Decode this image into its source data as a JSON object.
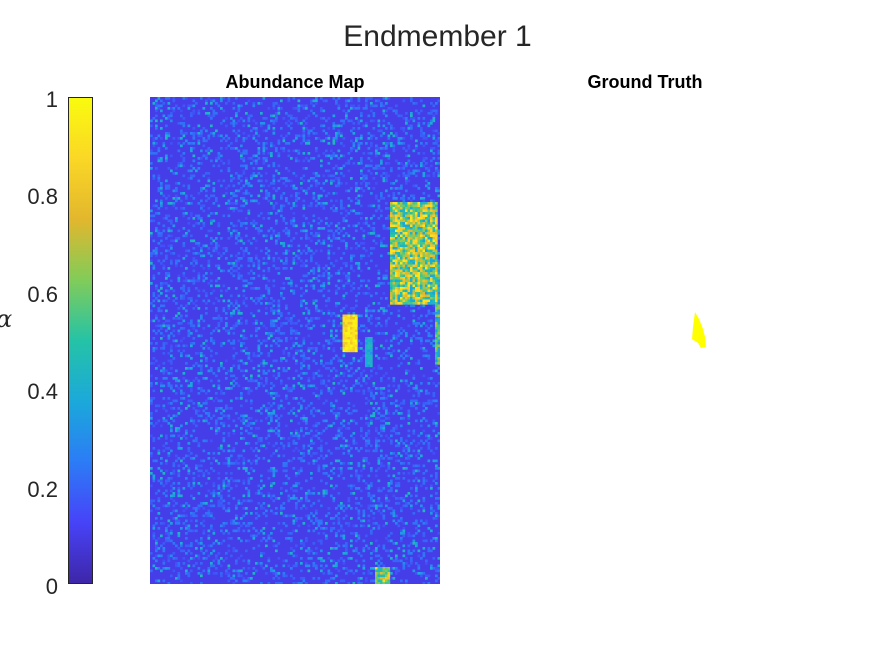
{
  "chart_data": [
    {
      "type": "heatmap",
      "title": "Endmember 1",
      "colorbar": {
        "label": "α",
        "range": [
          0,
          1
        ],
        "ticks": [
          "0",
          "0.2",
          "0.4",
          "0.6",
          "0.8",
          "1"
        ],
        "colormap": "parula",
        "colors": [
          "#3e26a8",
          "#4743f8",
          "#2c7cf6",
          "#1ba9da",
          "#25c3a6",
          "#81cc59",
          "#e2b72d",
          "#fbd726",
          "#f9fb0e"
        ]
      },
      "panels": [
        {
          "name": "abundance-map",
          "subtitle": "Abundance Map",
          "background_value": 0.1,
          "regions": [
            {
              "shape": "field-block",
              "value": 0.6
            },
            {
              "shape": "small-patch-center",
              "value": 0.95
            },
            {
              "shape": "small-patch-bottom",
              "value": 0.6
            }
          ]
        },
        {
          "name": "ground-truth",
          "subtitle": "Ground Truth",
          "background": "#ffffff",
          "regions": [
            {
              "shape": "small-patch-center",
              "value": 1.0,
              "color": "#ffff00"
            }
          ]
        }
      ]
    }
  ]
}
